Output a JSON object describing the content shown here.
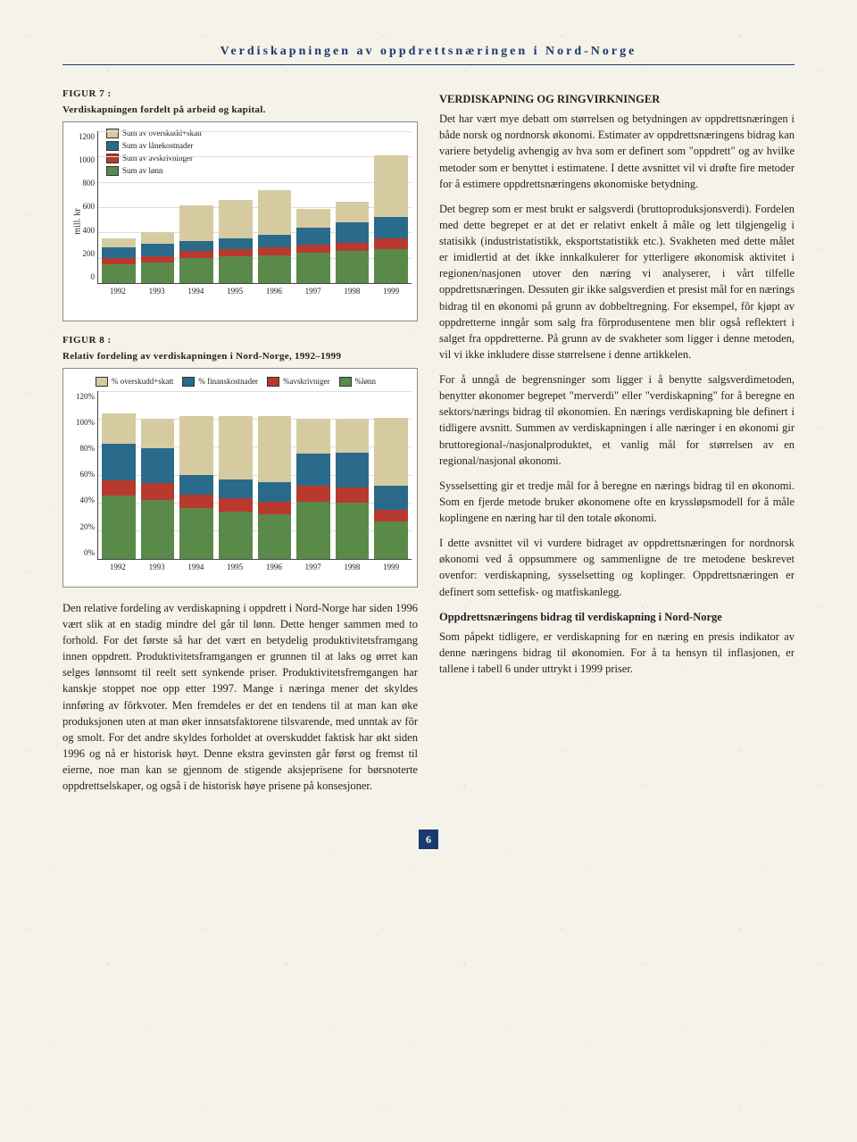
{
  "header": "Verdiskapningen av oppdrettsnæringen i Nord-Norge",
  "page_number": "6",
  "figure7": {
    "label": "FIGUR 7 :",
    "title": "Verdiskapningen fordelt på arbeid og kapital.",
    "type": "stacked-bar",
    "y_label": "mill. kr",
    "y_max": 1200,
    "y_ticks": [
      "1200",
      "1000",
      "800",
      "600",
      "400",
      "200",
      "0"
    ],
    "categories": [
      "1992",
      "1993",
      "1994",
      "1995",
      "1996",
      "1997",
      "1998",
      "1999"
    ],
    "series": [
      {
        "name": "Sum av overskudd+skatt",
        "color": "#d6cba0"
      },
      {
        "name": "Sum av lånekostnader",
        "color": "#2a6a8a"
      },
      {
        "name": "Sum av avskrivninger",
        "color": "#b83a2e"
      },
      {
        "name": "Sum av lønn",
        "color": "#5a8a4a"
      }
    ],
    "stacks": [
      [
        70,
        90,
        45,
        150
      ],
      [
        90,
        100,
        50,
        160
      ],
      [
        280,
        80,
        50,
        200
      ],
      [
        300,
        90,
        55,
        210
      ],
      [
        350,
        100,
        60,
        220
      ],
      [
        150,
        130,
        65,
        240
      ],
      [
        160,
        160,
        70,
        250
      ],
      [
        490,
        170,
        80,
        270
      ]
    ]
  },
  "figure8": {
    "label": "FIGUR 8 :",
    "title": "Relativ fordeling av verdiskapningen i Nord-Norge, 1992–1999",
    "type": "stacked-bar-percent",
    "y_max": 120,
    "y_ticks": [
      "120%",
      "100%",
      "80%",
      "60%",
      "40%",
      "20%",
      "0%"
    ],
    "categories": [
      "1992",
      "1993",
      "1994",
      "1995",
      "1996",
      "1997",
      "1998",
      "1999"
    ],
    "series": [
      {
        "name": "% overskudd+skatt",
        "color": "#d6cba0"
      },
      {
        "name": "% finanskostnader",
        "color": "#2a6a8a"
      },
      {
        "name": "%avskrivniger",
        "color": "#b83a2e"
      },
      {
        "name": "%lønn",
        "color": "#5a8a4a"
      }
    ],
    "stacks": [
      [
        22,
        26,
        11,
        45
      ],
      [
        21,
        25,
        12,
        42
      ],
      [
        42,
        14,
        10,
        36
      ],
      [
        45,
        14,
        9,
        34
      ],
      [
        47,
        14,
        9,
        32
      ],
      [
        25,
        23,
        11,
        41
      ],
      [
        24,
        25,
        11,
        40
      ],
      [
        49,
        17,
        8,
        27
      ]
    ]
  },
  "left_text": "Den relative fordeling av verdiskapning i oppdrett i Nord-Norge har siden 1996 vært slik at en stadig mindre del går til lønn. Dette henger sammen med to forhold. For det første så har det vært en betydelig produktivitetsframgang innen oppdrett. Produktivitetsframgangen er grunnen til at laks og ørret kan selges lønnsomt til reelt sett synkende priser. Produktivitetsfremgangen har kanskje stoppet noe opp etter 1997. Mange i næringa mener det skyldes innføring av fôrkvoter. Men fremdeles er det en tendens til at man kan øke produksjonen uten at man øker innsatsfaktorene tilsvarende, med unntak av fôr og smolt. For det andre skyldes forholdet at overskuddet faktisk har økt siden 1996 og nå er historisk høyt. Denne ekstra gevinsten går først og fremst til eierne, noe man kan se gjennom de stigende aksjeprisene for børsnoterte oppdrettselskaper, og også i de historisk høye prisene på konsesjoner.",
  "right": {
    "h1": "VERDISKAPNING OG RINGVIRKNINGER",
    "p1": "Det har vært mye debatt om størrelsen og betydningen av oppdrettsnæringen i både norsk og nordnorsk økonomi. Estimater av oppdrettsnæringens bidrag kan variere betydelig avhengig av hva som er definert som \"oppdrett\" og av hvilke metoder som er benyttet i estimatene. I dette avsnittet vil vi drøfte fire metoder for å estimere oppdrettsnæringens økonomiske betydning.",
    "p2": "Det begrep som er mest brukt er salgsverdi (bruttoproduksjonsverdi). Fordelen med dette begrepet er at det er relativt enkelt å måle og lett tilgjengelig i statisikk (industristatistikk, eksportstatistikk etc.). Svakheten med dette målet er imidlertid at det ikke innkalkulerer for ytterligere økonomisk aktivitet i regionen/nasjonen utover den næring vi analyserer, i vårt tilfelle oppdrettsnæringen. Dessuten gir ikke salgsverdien et presist mål for en nærings bidrag til en økonomi på grunn av dobbeltregning. For eksempel, fôr kjøpt av oppdretterne inngår som salg fra fôrprodusentene men blir også reflektert i salget fra oppdretterne. På grunn av de svakheter som ligger i denne metoden, vil vi ikke inkludere disse størrelsene i denne artikkelen.",
    "p3": "For å unngå de begrensninger som ligger i å benytte salgsverdimetoden, benytter økonomer begrepet \"merverdi\" eller \"verdiskapning\" for å beregne en sektors/nærings bidrag til økonomien. En nærings verdiskapning ble definert i tidligere avsnitt. Summen av verdiskapningen i alle næringer i en økonomi gir bruttoregional-/nasjonalproduktet, et vanlig mål for størrelsen av en regional/nasjonal økonomi.",
    "p4": "Sysselsetting gir et tredje mål for å beregne en nærings bidrag til en økonomi. Som en fjerde metode bruker økonomene ofte en kryssløpsmodell for å måle koplingene en næring har til den totale økonomi.",
    "p5": "I dette avsnittet vil vi vurdere bidraget av oppdrettsnæringen for nordnorsk økonomi ved å oppsummere og sammenligne de tre metodene beskrevet ovenfor: verdiskapning, sysselsetting og koplinger. Oppdrettsnæringen er definert som settefisk- og matfiskanlegg.",
    "h2": "Oppdrettsnæringens bidrag til verdiskapning i Nord-Norge",
    "p6": "Som påpekt tidligere, er verdiskapning for en næring en presis indikator av denne næringens bidrag til økonomien. For å ta hensyn til inflasjonen, er tallene i tabell 6 under uttrykt i 1999 priser."
  }
}
